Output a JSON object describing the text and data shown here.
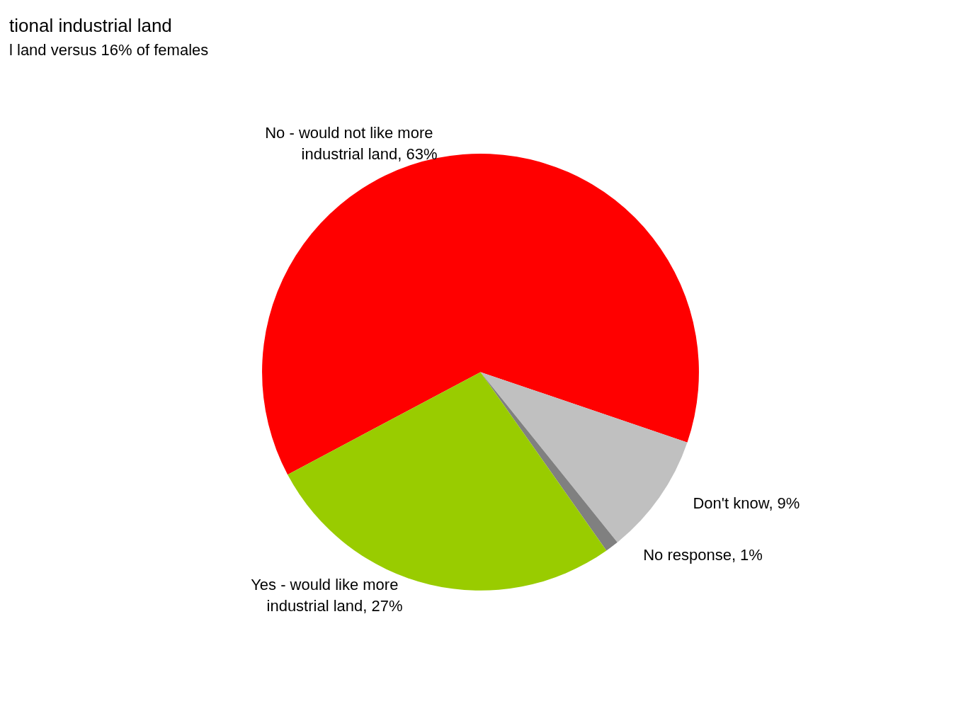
{
  "chart_data": {
    "type": "pie",
    "title": "tional industrial land",
    "subtitle": "l land versus 16% of females",
    "categories": [
      "No - would not like more industrial land",
      "Don't know",
      "No response",
      "Yes - would like more industrial land"
    ],
    "values": [
      63,
      9,
      1,
      27
    ],
    "value_labels": [
      "63%",
      "9%",
      "1%",
      "27%"
    ],
    "colors": [
      "#ff0000",
      "#c0c0c0",
      "#808080",
      "#99cc00"
    ],
    "legend": false
  }
}
